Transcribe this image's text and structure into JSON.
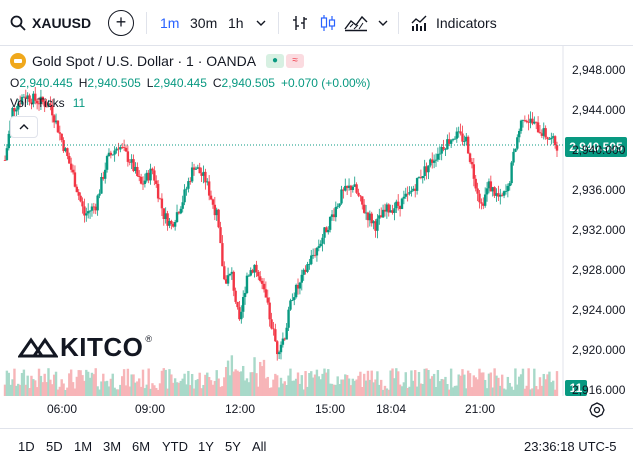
{
  "toolbar": {
    "symbol": "XAUUSD",
    "add_symbol_icon": "plus-circle-icon",
    "timeframes": [
      "1m",
      "30m",
      "1h"
    ],
    "active_timeframe": "1m",
    "indicators_label": "Indicators"
  },
  "legend": {
    "title": "Gold Spot / U.S. Dollar · 1 · OANDA",
    "open_key": "O",
    "open": "2,940.445",
    "high_key": "H",
    "high": "2,940.505",
    "low_key": "L",
    "low": "2,940.445",
    "close_key": "C",
    "close": "2,940.505",
    "change": "+0.070 (+0.00%)",
    "volume_label": "Vol · Ticks",
    "volume_value": "11"
  },
  "watermark": "KITCO",
  "colors": {
    "up": "#089981",
    "down": "#f23645",
    "accent": "#2962ff",
    "vol_up": "#a8d9c9",
    "vol_down": "#f7b5b8"
  },
  "chart_data": {
    "type": "candlestick",
    "symbol": "XAUUSD",
    "ylim": [
      2916,
      2950
    ],
    "y_ticks": [
      "2,948.000",
      "2,944.000",
      "2,940.000",
      "2,936.000",
      "2,932.000",
      "2,928.000",
      "2,924.000",
      "2,920.000",
      "2,916.000"
    ],
    "x_ticks": [
      "06:00",
      "09:00",
      "12:00",
      "15:00",
      "18:04",
      "21:00"
    ],
    "last_price": "2,940.505",
    "last_volume": "11",
    "close_path": [
      [
        0,
        2939.0
      ],
      [
        2,
        2944.0
      ],
      [
        5,
        2945.5
      ],
      [
        8,
        2945.0
      ],
      [
        12,
        2944.5
      ],
      [
        15,
        2941.0
      ],
      [
        18,
        2937.5
      ],
      [
        21,
        2933.5
      ],
      [
        24,
        2934.5
      ],
      [
        27,
        2939.0
      ],
      [
        30,
        2940.5
      ],
      [
        33,
        2939.0
      ],
      [
        36,
        2936.5
      ],
      [
        39,
        2938.0
      ],
      [
        42,
        2933.5
      ],
      [
        44,
        2932.5
      ],
      [
        47,
        2935.0
      ],
      [
        50,
        2938.5
      ],
      [
        53,
        2937.0
      ],
      [
        56,
        2933.5
      ],
      [
        58,
        2927.0
      ],
      [
        60,
        2927.5
      ],
      [
        62,
        2922.5
      ],
      [
        64,
        2927.5
      ],
      [
        66,
        2928.5
      ],
      [
        69,
        2925.0
      ],
      [
        72,
        2920.0
      ],
      [
        74,
        2921.5
      ],
      [
        76,
        2925.5
      ],
      [
        78,
        2926.5
      ],
      [
        80,
        2928.5
      ],
      [
        83,
        2930.5
      ],
      [
        86,
        2933.0
      ],
      [
        89,
        2935.5
      ],
      [
        92,
        2936.5
      ],
      [
        95,
        2934.0
      ],
      [
        98,
        2932.5
      ],
      [
        101,
        2934.0
      ],
      [
        104,
        2934.5
      ],
      [
        107,
        2935.5
      ],
      [
        110,
        2937.5
      ],
      [
        113,
        2939.0
      ],
      [
        116,
        2940.5
      ],
      [
        119,
        2941.5
      ],
      [
        122,
        2941.0
      ],
      [
        124,
        2937.5
      ],
      [
        126,
        2934.5
      ],
      [
        128,
        2936.5
      ],
      [
        131,
        2935.0
      ],
      [
        133,
        2936.0
      ],
      [
        135,
        2940.5
      ],
      [
        137,
        2943.5
      ],
      [
        140,
        2942.5
      ],
      [
        143,
        2941.5
      ],
      [
        146,
        2940.5
      ]
    ]
  },
  "bottom": {
    "ranges": [
      "1D",
      "5D",
      "1M",
      "3M",
      "6M",
      "YTD",
      "1Y",
      "5Y",
      "All"
    ],
    "clock": "23:36:18 UTC-5"
  }
}
